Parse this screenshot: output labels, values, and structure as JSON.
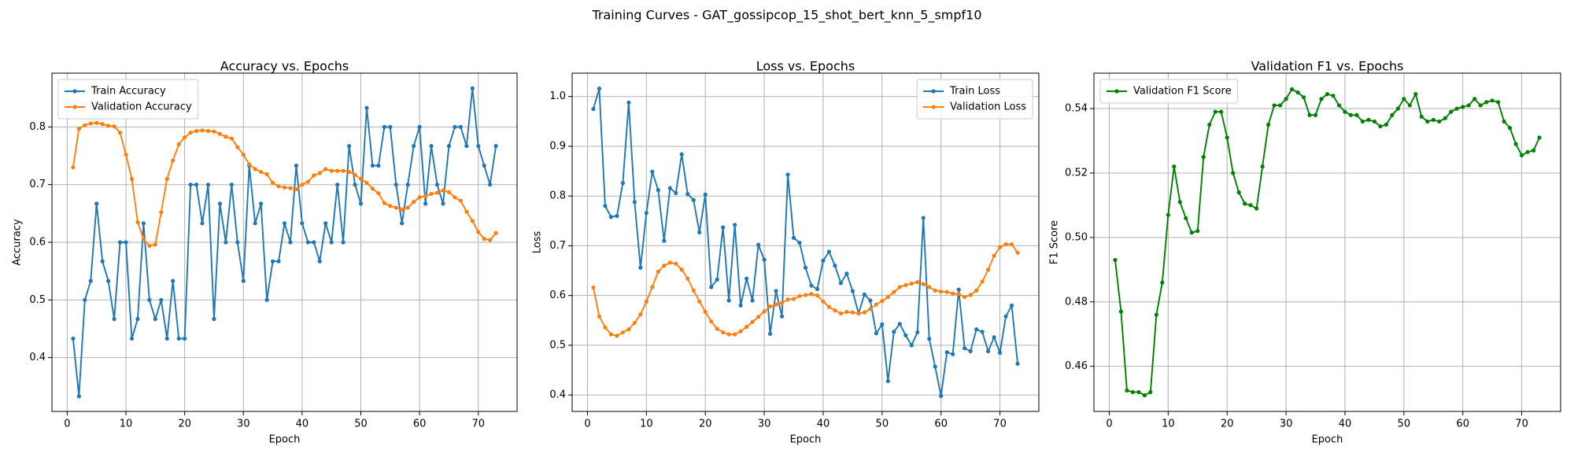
{
  "title": "Training Curves - GAT_gossipcop_15_shot_bert_knn_5_smpf10",
  "chart_data": [
    {
      "type": "line",
      "title": "Accuracy vs. Epochs",
      "xlabel": "Epoch",
      "ylabel": "Accuracy",
      "x": [
        1,
        2,
        3,
        4,
        5,
        6,
        7,
        8,
        9,
        10,
        11,
        12,
        13,
        14,
        15,
        16,
        17,
        18,
        19,
        20,
        21,
        22,
        23,
        24,
        25,
        26,
        27,
        28,
        29,
        30,
        31,
        32,
        33,
        34,
        35,
        36,
        37,
        38,
        39,
        40,
        41,
        42,
        43,
        44,
        45,
        46,
        47,
        48,
        49,
        50,
        51,
        52,
        53,
        54,
        55,
        56,
        57,
        58,
        59,
        60,
        61,
        62,
        63,
        64,
        65,
        66,
        67,
        68,
        69,
        70,
        71,
        72,
        73
      ],
      "xlim": [
        -2.6,
        76.6
      ],
      "xticks": [
        0,
        10,
        20,
        30,
        40,
        50,
        60,
        70
      ],
      "ylim": [
        0.3067,
        0.8933
      ],
      "yticks": [
        0.4,
        0.5,
        0.6,
        0.7,
        0.8
      ],
      "grid": true,
      "legend": "upper left",
      "series": [
        {
          "name": "Train Accuracy",
          "color": "#1f77b4",
          "values": [
            0.433,
            0.333,
            0.5,
            0.533,
            0.667,
            0.567,
            0.533,
            0.467,
            0.6,
            0.6,
            0.433,
            0.467,
            0.633,
            0.5,
            0.467,
            0.5,
            0.433,
            0.533,
            0.433,
            0.433,
            0.7,
            0.7,
            0.633,
            0.7,
            0.467,
            0.667,
            0.6,
            0.7,
            0.6,
            0.533,
            0.733,
            0.633,
            0.667,
            0.5,
            0.567,
            0.567,
            0.633,
            0.6,
            0.733,
            0.633,
            0.6,
            0.6,
            0.567,
            0.633,
            0.6,
            0.7,
            0.6,
            0.767,
            0.7,
            0.667,
            0.833,
            0.733,
            0.733,
            0.8,
            0.8,
            0.7,
            0.633,
            0.7,
            0.767,
            0.8,
            0.667,
            0.767,
            0.7,
            0.667,
            0.767,
            0.8,
            0.8,
            0.767,
            0.867,
            0.767,
            0.733,
            0.7,
            0.767
          ]
        },
        {
          "name": "Validation Accuracy",
          "color": "#ff7f0e",
          "values": [
            0.73,
            0.797,
            0.803,
            0.806,
            0.807,
            0.805,
            0.802,
            0.801,
            0.79,
            0.752,
            0.71,
            0.635,
            0.605,
            0.594,
            0.596,
            0.652,
            0.71,
            0.742,
            0.77,
            0.782,
            0.79,
            0.793,
            0.794,
            0.793,
            0.792,
            0.788,
            0.783,
            0.78,
            0.765,
            0.752,
            0.735,
            0.727,
            0.722,
            0.718,
            0.703,
            0.697,
            0.695,
            0.694,
            0.692,
            0.7,
            0.705,
            0.716,
            0.72,
            0.727,
            0.724,
            0.724,
            0.724,
            0.722,
            0.717,
            0.71,
            0.703,
            0.693,
            0.685,
            0.668,
            0.663,
            0.66,
            0.657,
            0.66,
            0.67,
            0.678,
            0.68,
            0.684,
            0.686,
            0.69,
            0.687,
            0.678,
            0.672,
            0.653,
            0.637,
            0.618,
            0.606,
            0.604,
            0.616
          ]
        }
      ]
    },
    {
      "type": "line",
      "title": "Loss vs. Epochs",
      "xlabel": "Epoch",
      "ylabel": "Loss",
      "x": [
        1,
        2,
        3,
        4,
        5,
        6,
        7,
        8,
        9,
        10,
        11,
        12,
        13,
        14,
        15,
        16,
        17,
        18,
        19,
        20,
        21,
        22,
        23,
        24,
        25,
        26,
        27,
        28,
        29,
        30,
        31,
        32,
        33,
        34,
        35,
        36,
        37,
        38,
        39,
        40,
        41,
        42,
        43,
        44,
        45,
        46,
        47,
        48,
        49,
        50,
        51,
        52,
        53,
        54,
        55,
        56,
        57,
        58,
        59,
        60,
        61,
        62,
        63,
        64,
        65,
        66,
        67,
        68,
        69,
        70,
        71,
        72,
        73
      ],
      "xlim": [
        -2.6,
        76.6
      ],
      "xticks": [
        0,
        10,
        20,
        30,
        40,
        50,
        60,
        70
      ],
      "ylim": [
        0.367,
        1.047
      ],
      "yticks": [
        0.4,
        0.5,
        0.6,
        0.7,
        0.8,
        0.9,
        {
          "value": 1.0,
          "label": "1.0"
        }
      ],
      "grid": true,
      "legend": "upper right",
      "series": [
        {
          "name": "Train Loss",
          "color": "#1f77b4",
          "values": [
            0.975,
            1.016,
            0.78,
            0.758,
            0.76,
            0.826,
            0.988,
            0.788,
            0.656,
            0.766,
            0.849,
            0.812,
            0.71,
            0.816,
            0.806,
            0.884,
            0.804,
            0.792,
            0.727,
            0.803,
            0.617,
            0.632,
            0.737,
            0.59,
            0.742,
            0.58,
            0.634,
            0.59,
            0.702,
            0.672,
            0.523,
            0.609,
            0.558,
            0.843,
            0.716,
            0.706,
            0.656,
            0.62,
            0.613,
            0.67,
            0.688,
            0.66,
            0.625,
            0.644,
            0.609,
            0.564,
            0.602,
            0.59,
            0.524,
            0.542,
            0.428,
            0.527,
            0.543,
            0.52,
            0.5,
            0.526,
            0.756,
            0.513,
            0.457,
            0.398,
            0.486,
            0.482,
            0.612,
            0.494,
            0.488,
            0.532,
            0.527,
            0.488,
            0.516,
            0.485,
            0.558,
            0.58,
            0.463
          ]
        },
        {
          "name": "Validation Loss",
          "color": "#ff7f0e",
          "values": [
            0.616,
            0.558,
            0.536,
            0.522,
            0.519,
            0.526,
            0.532,
            0.545,
            0.562,
            0.588,
            0.617,
            0.648,
            0.66,
            0.666,
            0.664,
            0.652,
            0.634,
            0.61,
            0.588,
            0.567,
            0.548,
            0.533,
            0.526,
            0.522,
            0.522,
            0.528,
            0.537,
            0.547,
            0.557,
            0.568,
            0.578,
            0.582,
            0.585,
            0.592,
            0.593,
            0.599,
            0.601,
            0.603,
            0.6,
            0.588,
            0.577,
            0.57,
            0.564,
            0.567,
            0.566,
            0.564,
            0.566,
            0.573,
            0.582,
            0.589,
            0.597,
            0.607,
            0.617,
            0.621,
            0.624,
            0.627,
            0.623,
            0.617,
            0.61,
            0.608,
            0.607,
            0.604,
            0.603,
            0.597,
            0.601,
            0.61,
            0.628,
            0.652,
            0.68,
            0.697,
            0.703,
            0.703,
            0.686
          ]
        }
      ]
    },
    {
      "type": "line",
      "title": "Validation F1 vs. Epochs",
      "xlabel": "Epoch",
      "ylabel": "F1 Score",
      "x": [
        1,
        2,
        3,
        4,
        5,
        6,
        7,
        8,
        9,
        10,
        11,
        12,
        13,
        14,
        15,
        16,
        17,
        18,
        19,
        20,
        21,
        22,
        23,
        24,
        25,
        26,
        27,
        28,
        29,
        30,
        31,
        32,
        33,
        34,
        35,
        36,
        37,
        38,
        39,
        40,
        41,
        42,
        43,
        44,
        45,
        46,
        47,
        48,
        49,
        50,
        51,
        52,
        53,
        54,
        55,
        56,
        57,
        58,
        59,
        60,
        61,
        62,
        63,
        64,
        65,
        66,
        67,
        68,
        69,
        70,
        71,
        72,
        73
      ],
      "xlim": [
        -2.6,
        76.6
      ],
      "xticks": [
        0,
        10,
        20,
        30,
        40,
        50,
        60,
        70
      ],
      "ylim": [
        0.446,
        0.551
      ],
      "yticks": [
        0.46,
        0.48,
        {
          "value": 0.5,
          "label": "0.50"
        },
        0.52,
        0.54
      ],
      "grid": true,
      "legend": "upper left",
      "series": [
        {
          "name": "Validation F1 Score",
          "color": "#008000",
          "values": [
            0.493,
            0.477,
            0.4525,
            0.452,
            0.452,
            0.451,
            0.452,
            0.476,
            0.486,
            0.507,
            0.522,
            0.511,
            0.506,
            0.5015,
            0.502,
            0.525,
            0.535,
            0.539,
            0.539,
            0.531,
            0.52,
            0.514,
            0.5105,
            0.51,
            0.509,
            0.522,
            0.535,
            0.541,
            0.541,
            0.543,
            0.546,
            0.545,
            0.5435,
            0.538,
            0.538,
            0.543,
            0.5445,
            0.544,
            0.541,
            0.539,
            0.538,
            0.538,
            0.536,
            0.5365,
            0.536,
            0.5345,
            0.535,
            0.538,
            0.54,
            0.543,
            0.541,
            0.5445,
            0.5375,
            0.536,
            0.5365,
            0.536,
            0.537,
            0.539,
            0.54,
            0.5405,
            0.541,
            0.543,
            0.541,
            0.542,
            0.5425,
            0.542,
            0.536,
            0.534,
            0.529,
            0.5255,
            0.5265,
            0.527,
            0.531
          ]
        }
      ]
    }
  ]
}
